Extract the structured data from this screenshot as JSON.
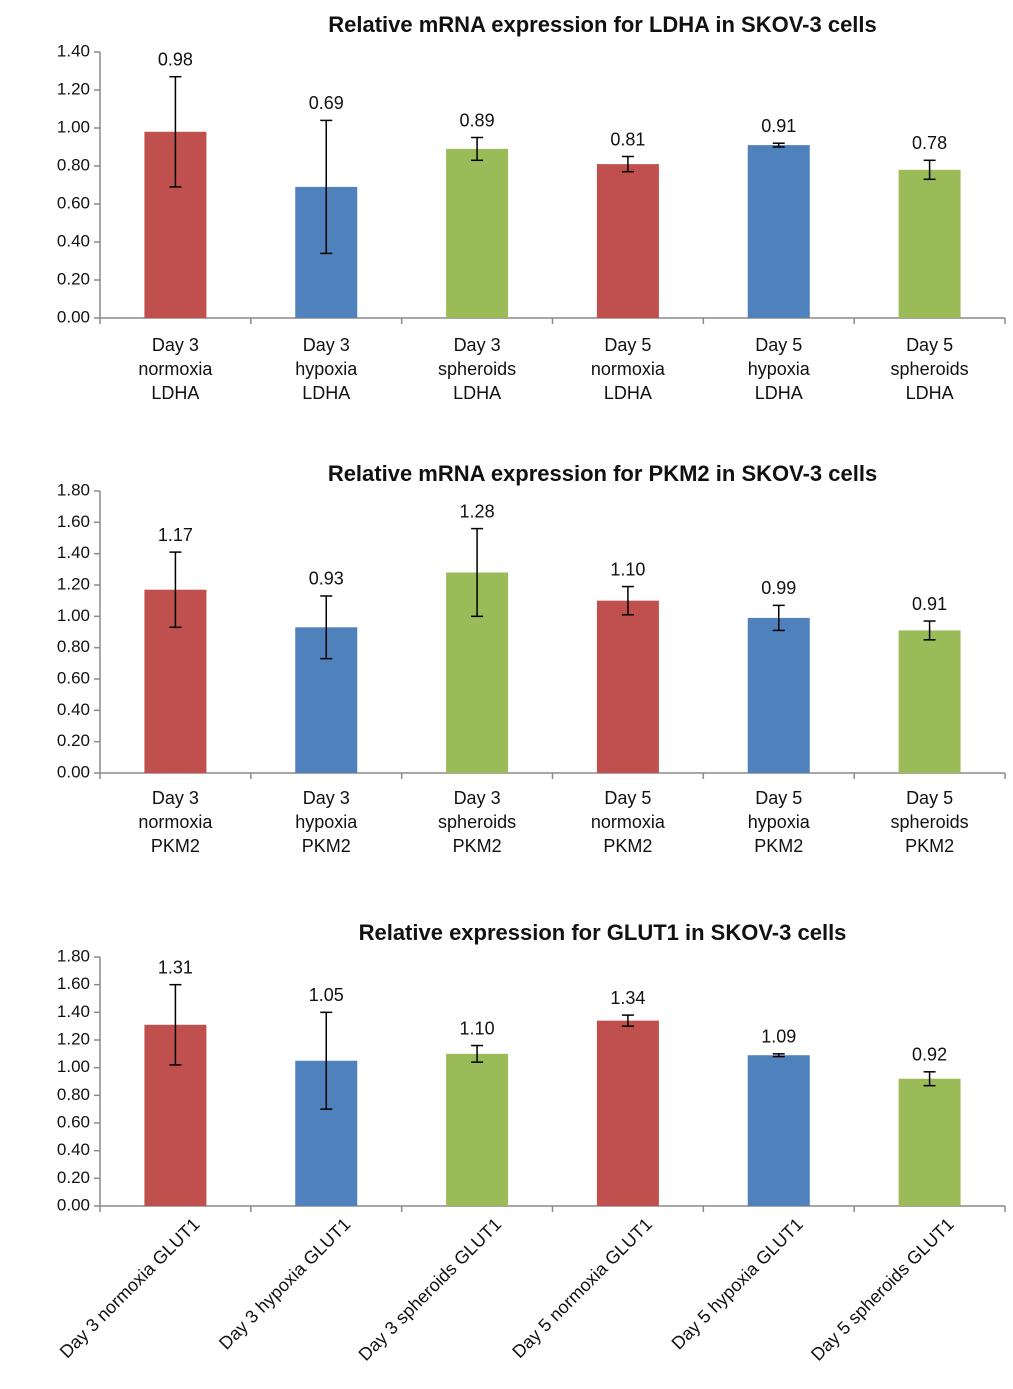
{
  "chart_data": [
    {
      "type": "bar",
      "title": "Relative mRNA expression for LDHA in SKOV-3 cells",
      "categories": [
        "Day 3 normoxia LDHA",
        "Day 3 hypoxia LDHA",
        "Day 3 spheroids LDHA",
        "Day 5 normoxia LDHA",
        "Day 5 hypoxia LDHA",
        "Day 5 spheroids LDHA"
      ],
      "values": [
        0.98,
        0.69,
        0.89,
        0.81,
        0.91,
        0.78
      ],
      "value_labels": [
        "0.98",
        "0.69",
        "0.89",
        "0.81",
        "0.91",
        "0.78"
      ],
      "errors": [
        0.29,
        0.35,
        0.06,
        0.04,
        0.01,
        0.05
      ],
      "colors": [
        "#c0504d",
        "#4f81bd",
        "#9bbb59",
        "#c0504d",
        "#4f81bd",
        "#9bbb59"
      ],
      "ylim": [
        0,
        1.4
      ],
      "yticks": [
        {
          "value": 0,
          "label": "0.00"
        },
        {
          "value": 0.2,
          "label": "0.20"
        },
        {
          "value": 0.4,
          "label": "0.40"
        },
        {
          "value": 0.6,
          "label": "0.60"
        },
        {
          "value": 0.8,
          "label": "0.80"
        },
        {
          "value": 1,
          "label": "1.00"
        },
        {
          "value": 1.2,
          "label": "1.20"
        },
        {
          "value": 1.4,
          "label": "1.40"
        }
      ]
    },
    {
      "type": "bar",
      "title": "Relative mRNA expression for PKM2 in SKOV-3 cells",
      "categories": [
        "Day 3 normoxia PKM2",
        "Day 3 hypoxia PKM2",
        "Day 3 spheroids PKM2",
        "Day 5 normoxia PKM2",
        "Day 5 hypoxia PKM2",
        "Day 5 spheroids PKM2"
      ],
      "values": [
        1.17,
        0.93,
        1.28,
        1.1,
        0.99,
        0.91
      ],
      "value_labels": [
        "1.17",
        "0.93",
        "1.28",
        "1.10",
        "0.99",
        "0.91"
      ],
      "errors": [
        0.24,
        0.2,
        0.28,
        0.09,
        0.08,
        0.06
      ],
      "colors": [
        "#c0504d",
        "#4f81bd",
        "#9bbb59",
        "#c0504d",
        "#4f81bd",
        "#9bbb59"
      ],
      "ylim": [
        0,
        1.8
      ],
      "yticks": [
        {
          "value": 0,
          "label": "0.00"
        },
        {
          "value": 0.2,
          "label": "0.20"
        },
        {
          "value": 0.4,
          "label": "0.40"
        },
        {
          "value": 0.6,
          "label": "0.60"
        },
        {
          "value": 0.8,
          "label": "0.80"
        },
        {
          "value": 1,
          "label": "1.00"
        },
        {
          "value": 1.2,
          "label": "1.20"
        },
        {
          "value": 1.4,
          "label": "1.40"
        },
        {
          "value": 1.6,
          "label": "1.60"
        },
        {
          "value": 1.8,
          "label": "1.80"
        }
      ]
    },
    {
      "type": "bar",
      "title": "Relative expression for GLUT1 in SKOV-3 cells",
      "categories": [
        "Day 3 normoxia GLUT1",
        "Day 3 hypoxia GLUT1",
        "Day 3 spheroids GLUT1",
        "Day 5 normoxia GLUT1",
        "Day 5 hypoxia GLUT1",
        "Day 5 spheroids GLUT1"
      ],
      "values": [
        1.31,
        1.05,
        1.1,
        1.34,
        1.09,
        0.92
      ],
      "value_labels": [
        "1.31",
        "1.05",
        "1.10",
        "1.34",
        "1.09",
        "0.92"
      ],
      "errors": [
        0.29,
        0.35,
        0.06,
        0.04,
        0.01,
        0.05
      ],
      "colors": [
        "#c0504d",
        "#4f81bd",
        "#9bbb59",
        "#c0504d",
        "#4f81bd",
        "#9bbb59"
      ],
      "ylim": [
        0,
        1.8
      ],
      "yticks": [
        {
          "value": 0,
          "label": "0.00"
        },
        {
          "value": 0.2,
          "label": "0.20"
        },
        {
          "value": 0.4,
          "label": "0.40"
        },
        {
          "value": 0.6,
          "label": "0.60"
        },
        {
          "value": 0.8,
          "label": "0.80"
        },
        {
          "value": 1,
          "label": "1.00"
        },
        {
          "value": 1.2,
          "label": "1.20"
        },
        {
          "value": 1.4,
          "label": "1.40"
        },
        {
          "value": 1.6,
          "label": "1.60"
        },
        {
          "value": 1.8,
          "label": "1.80"
        }
      ]
    }
  ]
}
